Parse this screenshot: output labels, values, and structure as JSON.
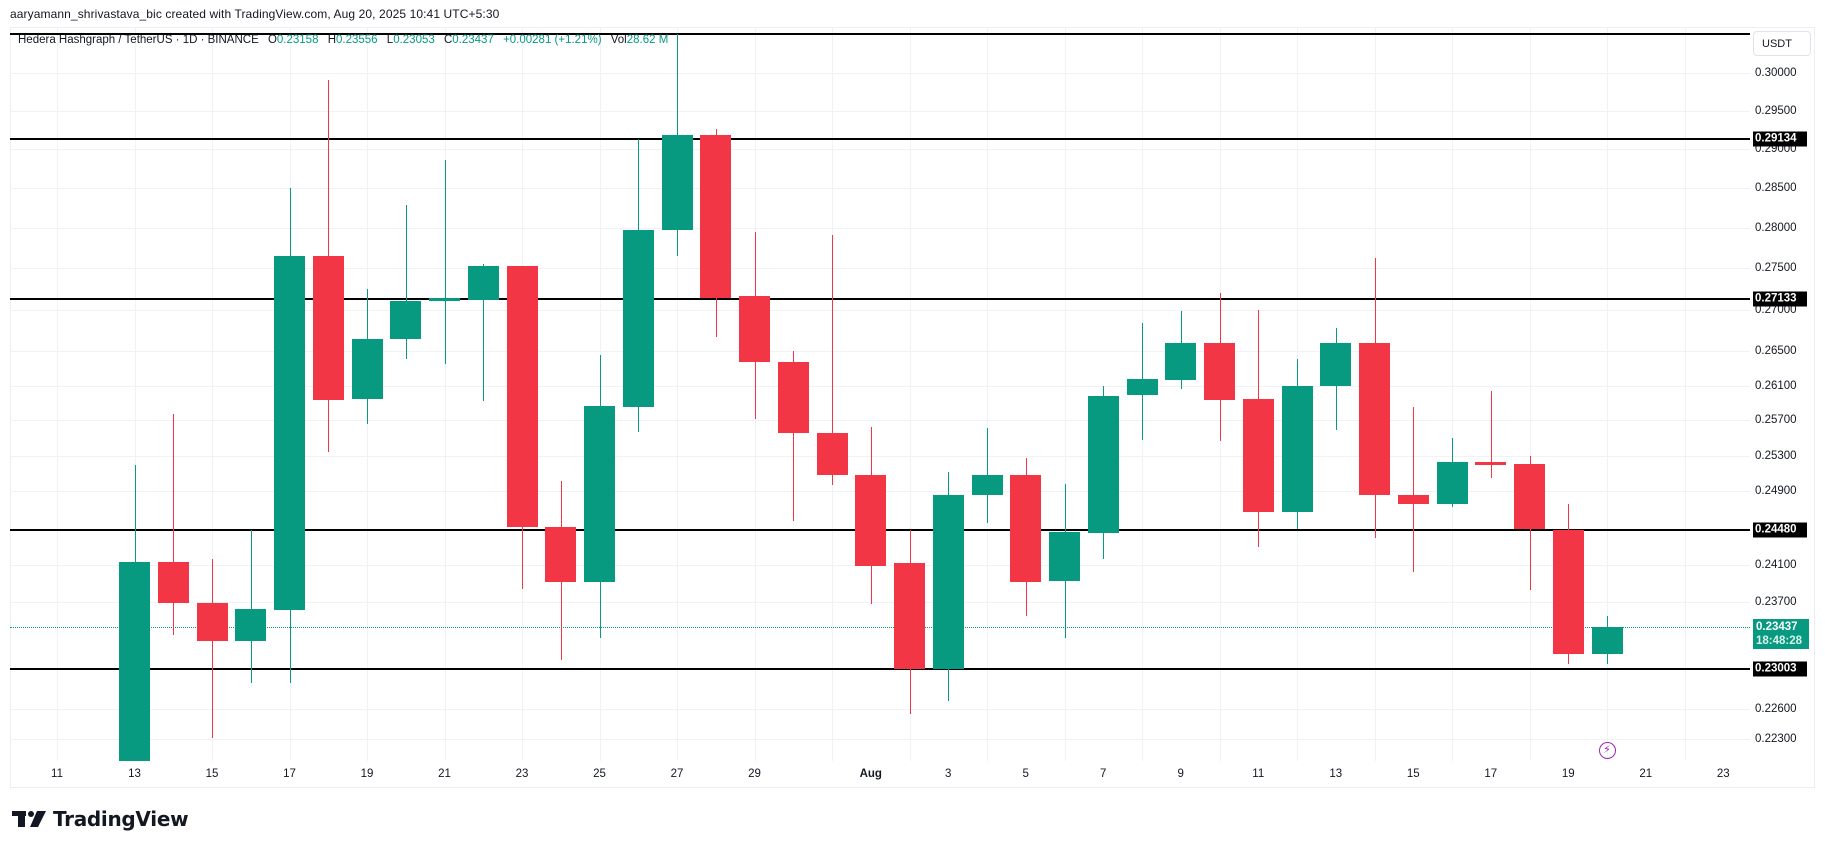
{
  "header": {
    "created_by": "aaryamann_shrivastava_bic created with TradingView.com, Aug 20, 2025 10:41 UTC+5:30"
  },
  "legend": {
    "symbol": "Hedera Hashgraph / TetherUS · 1D · BINANCE",
    "open_label": "O",
    "open": "0.23158",
    "high_label": "H",
    "high": "0.23556",
    "low_label": "L",
    "low": "0.23053",
    "close_label": "C",
    "close": "0.23437",
    "change": "+0.00281 (+1.21%)",
    "vol_label": "Vol",
    "vol": "28.62 M"
  },
  "price_axis": {
    "currency_button": "USDT",
    "ticks": [
      "0.30000",
      "0.29500",
      "0.29000",
      "0.28500",
      "0.28000",
      "0.27500",
      "0.27000",
      "0.26500",
      "0.26100",
      "0.25700",
      "0.25300",
      "0.24900",
      "0.24100",
      "0.23700",
      "0.22600",
      "0.22300"
    ],
    "last_price": "0.23437",
    "countdown": "18:48:28"
  },
  "time_axis": {
    "ticks": [
      "11",
      "13",
      "15",
      "17",
      "19",
      "21",
      "23",
      "25",
      "27",
      "29",
      "Aug",
      "3",
      "5",
      "7",
      "9",
      "11",
      "13",
      "15",
      "17",
      "19",
      "21",
      "23"
    ]
  },
  "colors": {
    "up": "#089981",
    "down": "#f23645",
    "level_line": "#000000",
    "grid": "#f0f2f5",
    "event_icon": "#9c27b0"
  },
  "footer": {
    "brand": "TradingView"
  },
  "chart_data": {
    "type": "candlestick",
    "title": "Hedera Hashgraph / TetherUS · 1D · BINANCE",
    "xlabel": "",
    "ylabel": "USDT",
    "scale": "log",
    "ylim": [
      0.2205,
      0.305
    ],
    "grid": true,
    "legend_position": "top-left",
    "x_ticks": [
      "11",
      "13",
      "15",
      "17",
      "19",
      "21",
      "23",
      "25",
      "27",
      "29",
      "Aug",
      "3",
      "5",
      "7",
      "9",
      "11",
      "13",
      "15",
      "17",
      "19",
      "21",
      "23"
    ],
    "horizontal_levels": [
      0.29134,
      0.27133,
      0.2448,
      0.23003
    ],
    "last_price": 0.23437,
    "candles": [
      {
        "date": "Jul 13",
        "o": 0.2205,
        "h": 0.2519,
        "l": 0.2205,
        "c": 0.2413
      },
      {
        "date": "Jul 14",
        "o": 0.2413,
        "h": 0.2577,
        "l": 0.2336,
        "c": 0.2369
      },
      {
        "date": "Jul 15",
        "o": 0.2369,
        "h": 0.2416,
        "l": 0.2231,
        "c": 0.2329
      },
      {
        "date": "Jul 16",
        "o": 0.2329,
        "h": 0.2448,
        "l": 0.2286,
        "c": 0.2363
      },
      {
        "date": "Jul 17",
        "o": 0.2362,
        "h": 0.285,
        "l": 0.2286,
        "c": 0.2765
      },
      {
        "date": "Jul 18",
        "o": 0.2765,
        "h": 0.2991,
        "l": 0.2534,
        "c": 0.2593
      },
      {
        "date": "Jul 19",
        "o": 0.2594,
        "h": 0.2725,
        "l": 0.2566,
        "c": 0.2665
      },
      {
        "date": "Jul 20",
        "o": 0.2665,
        "h": 0.2829,
        "l": 0.2641,
        "c": 0.271
      },
      {
        "date": "Jul 21",
        "o": 0.271,
        "h": 0.2886,
        "l": 0.2635,
        "c": 0.2714
      },
      {
        "date": "Jul 22",
        "o": 0.2711,
        "h": 0.2755,
        "l": 0.2592,
        "c": 0.2753
      },
      {
        "date": "Jul 23",
        "o": 0.2753,
        "h": 0.2753,
        "l": 0.2384,
        "c": 0.2451
      },
      {
        "date": "Jul 24",
        "o": 0.2451,
        "h": 0.2502,
        "l": 0.231,
        "c": 0.2391
      },
      {
        "date": "Jul 25",
        "o": 0.2391,
        "h": 0.2646,
        "l": 0.2332,
        "c": 0.2586
      },
      {
        "date": "Jul 26",
        "o": 0.2585,
        "h": 0.2913,
        "l": 0.2557,
        "c": 0.2797
      },
      {
        "date": "Jul 27",
        "o": 0.2797,
        "h": 0.3053,
        "l": 0.2765,
        "c": 0.2918
      },
      {
        "date": "Jul 28",
        "o": 0.2918,
        "h": 0.2926,
        "l": 0.2667,
        "c": 0.2714
      },
      {
        "date": "Jul 29",
        "o": 0.2716,
        "h": 0.2795,
        "l": 0.2571,
        "c": 0.2638
      },
      {
        "date": "Jul 30",
        "o": 0.2638,
        "h": 0.2651,
        "l": 0.2457,
        "c": 0.2556
      },
      {
        "date": "Jul 31",
        "o": 0.2556,
        "h": 0.2791,
        "l": 0.2497,
        "c": 0.2508
      },
      {
        "date": "Aug 1",
        "o": 0.2508,
        "h": 0.2562,
        "l": 0.2368,
        "c": 0.2409
      },
      {
        "date": "Aug 2",
        "o": 0.2412,
        "h": 0.2448,
        "l": 0.2255,
        "c": 0.2301
      },
      {
        "date": "Aug 3",
        "o": 0.2301,
        "h": 0.2511,
        "l": 0.2268,
        "c": 0.2486
      },
      {
        "date": "Aug 4",
        "o": 0.2486,
        "h": 0.2561,
        "l": 0.2455,
        "c": 0.2508
      },
      {
        "date": "Aug 5",
        "o": 0.2508,
        "h": 0.2527,
        "l": 0.2355,
        "c": 0.2391
      },
      {
        "date": "Aug 6",
        "o": 0.2392,
        "h": 0.2498,
        "l": 0.2332,
        "c": 0.2445
      },
      {
        "date": "Aug 7",
        "o": 0.2444,
        "h": 0.261,
        "l": 0.2416,
        "c": 0.2598
      },
      {
        "date": "Aug 8",
        "o": 0.2599,
        "h": 0.2684,
        "l": 0.2548,
        "c": 0.2618
      },
      {
        "date": "Aug 9",
        "o": 0.2616,
        "h": 0.2698,
        "l": 0.2606,
        "c": 0.266
      },
      {
        "date": "Aug 10",
        "o": 0.266,
        "h": 0.272,
        "l": 0.2546,
        "c": 0.2593
      },
      {
        "date": "Aug 11",
        "o": 0.2594,
        "h": 0.27,
        "l": 0.2429,
        "c": 0.2467
      },
      {
        "date": "Aug 12",
        "o": 0.2467,
        "h": 0.2641,
        "l": 0.2448,
        "c": 0.261
      },
      {
        "date": "Aug 13",
        "o": 0.261,
        "h": 0.2678,
        "l": 0.2559,
        "c": 0.266
      },
      {
        "date": "Aug 14",
        "o": 0.266,
        "h": 0.2763,
        "l": 0.2439,
        "c": 0.2486
      },
      {
        "date": "Aug 15",
        "o": 0.2486,
        "h": 0.2585,
        "l": 0.2402,
        "c": 0.2476
      },
      {
        "date": "Aug 16",
        "o": 0.2476,
        "h": 0.255,
        "l": 0.2473,
        "c": 0.2523
      },
      {
        "date": "Aug 17",
        "o": 0.2523,
        "h": 0.2604,
        "l": 0.2505,
        "c": 0.2519
      },
      {
        "date": "Aug 18",
        "o": 0.2521,
        "h": 0.253,
        "l": 0.2383,
        "c": 0.2448
      },
      {
        "date": "Aug 19",
        "o": 0.2448,
        "h": 0.2476,
        "l": 0.2306,
        "c": 0.23156
      },
      {
        "date": "Aug 20",
        "o": 0.23158,
        "h": 0.23556,
        "l": 0.23053,
        "c": 0.23437
      }
    ]
  }
}
